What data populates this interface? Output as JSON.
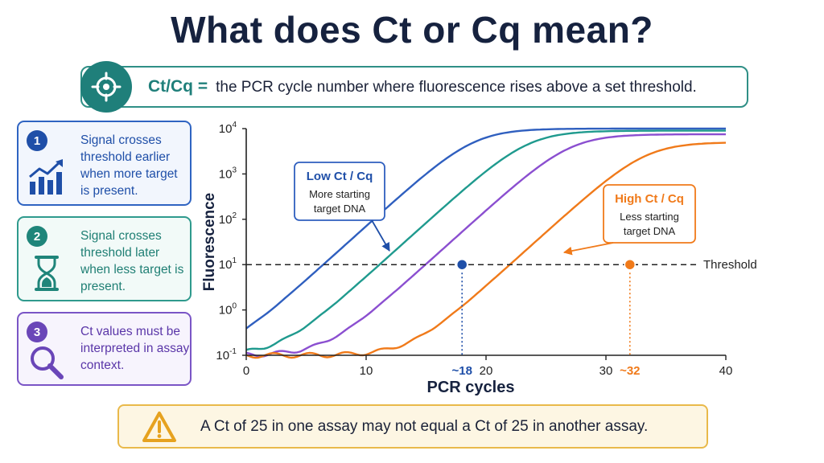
{
  "title": "What does Ct or Cq mean?",
  "definition": {
    "term": "Ct/Cq =",
    "text": "the PCR cycle number where fluorescence rises above a set threshold."
  },
  "cards": [
    {
      "number": "1",
      "text": "Signal crosses threshold earlier when more target is present.",
      "icon": "bar-chart-up-icon"
    },
    {
      "number": "2",
      "text": "Signal crosses threshold later when less target is present.",
      "icon": "hourglass-icon"
    },
    {
      "number": "3",
      "text": "Ct values must be interpreted in assay context.",
      "icon": "magnifier-icon"
    }
  ],
  "warning": {
    "icon": "warning-triangle-icon",
    "text": "A Ct of 25 in one assay may not equal a Ct of 25 in another assay."
  },
  "colors": {
    "title": "#16223f",
    "teal": "#1f7f7a",
    "blue": "#1f4fa8",
    "green": "#1f857a",
    "purple": "#6a46b8",
    "orange": "#f07a1a",
    "warning": "#e9b94a"
  },
  "chart_data": {
    "type": "line",
    "xlabel": "PCR cycles",
    "ylabel": "Fluorescence",
    "xlim": [
      0,
      40
    ],
    "ylim_log10": [
      -1,
      4
    ],
    "xticks": [
      "0",
      "10",
      "20",
      "30",
      "40"
    ],
    "yticks": [
      {
        "base": "10",
        "exp": "4"
      },
      {
        "base": "10",
        "exp": "3"
      },
      {
        "base": "10",
        "exp": "2"
      },
      {
        "base": "10",
        "exp": "1"
      },
      {
        "base": "10",
        "exp": "0"
      },
      {
        "base": "10",
        "exp": "-1"
      }
    ],
    "threshold": {
      "label": "Threshold",
      "value": 10
    },
    "series": [
      {
        "color": "#2f5fbf",
        "midpoint": 19,
        "plateau": 10000
      },
      {
        "color": "#1f9a8e",
        "midpoint": 23.5,
        "plateau": 9000
      },
      {
        "color": "#8b4fd0",
        "midpoint": 27,
        "plateau": 7500
      },
      {
        "color": "#f07a1a",
        "midpoint": 33.3,
        "plateau": 5000
      }
    ],
    "markers": [
      {
        "x": 18,
        "label": "~18",
        "color": "#1f4fa8",
        "callout_title": "Low Ct / Cq",
        "callout_text": "More starting target DNA"
      },
      {
        "x": 32,
        "label": "~32",
        "color": "#f07a1a",
        "callout_title": "High Ct / Cq",
        "callout_text": "Less starting target DNA"
      }
    ]
  }
}
